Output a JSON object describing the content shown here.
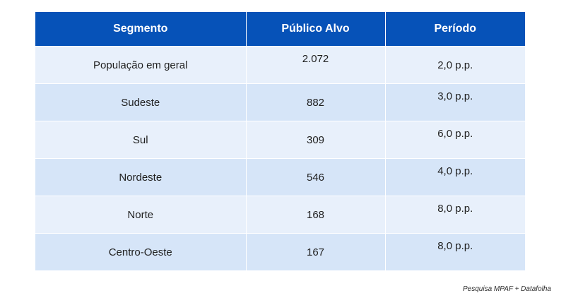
{
  "table": {
    "headers": [
      "Segmento",
      "Público Alvo",
      "Período"
    ],
    "rows": [
      [
        "População em geral",
        "2.072",
        "2,0 p.p."
      ],
      [
        "Sudeste",
        "882",
        "3,0 p.p."
      ],
      [
        "Sul",
        "309",
        "6,0 p.p."
      ],
      [
        "Nordeste",
        "546",
        "4,0 p.p."
      ],
      [
        "Norte",
        "168",
        "8,0 p.p."
      ],
      [
        "Centro-Oeste",
        "167",
        "8,0 p.p."
      ]
    ]
  },
  "source": "Pesquisa MPAF + Datafolha",
  "colors": {
    "header_bg": "#0652b8",
    "row_light": "#e8f0fb",
    "row_dark": "#d6e5f8"
  }
}
